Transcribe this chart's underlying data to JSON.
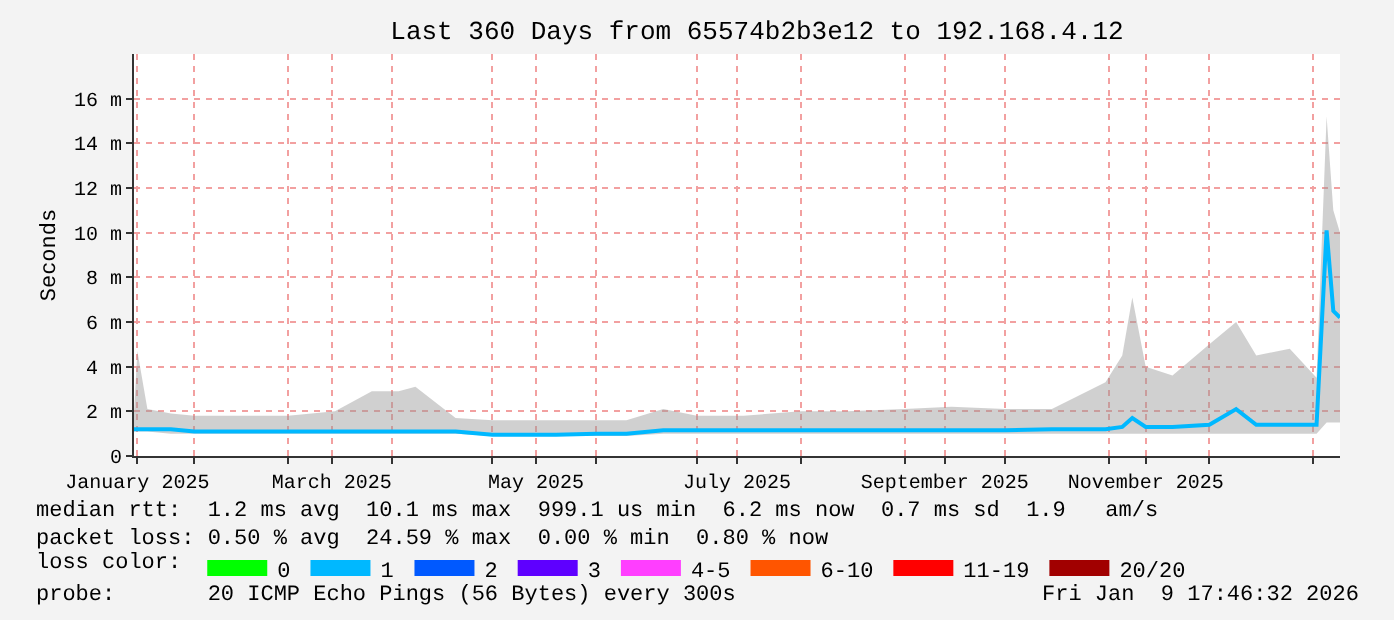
{
  "chart_data": {
    "type": "line",
    "title": "Last 360 Days from 65574b2b3e12 to 192.168.4.12",
    "ylabel": "Seconds",
    "x": [
      "2025-01-14",
      "2025-01-15",
      "2025-01-18",
      "2025-01-25",
      "2025-02-01",
      "2025-02-15",
      "2025-03-01",
      "2025-03-15",
      "2025-03-26",
      "2025-04-03",
      "2025-04-08",
      "2025-04-20",
      "2025-05-01",
      "2025-05-20",
      "2025-06-01",
      "2025-06-10",
      "2025-06-21",
      "2025-07-01",
      "2025-07-15",
      "2025-08-01",
      "2025-08-15",
      "2025-09-01",
      "2025-09-15",
      "2025-10-01",
      "2025-10-15",
      "2025-10-31",
      "2025-11-05",
      "2025-11-08",
      "2025-11-12",
      "2025-11-20",
      "2025-12-01",
      "2025-12-09",
      "2025-12-15",
      "2025-12-25",
      "2026-01-02",
      "2026-01-05",
      "2026-01-07",
      "2026-01-09"
    ],
    "series": [
      {
        "color": "#00b8ff",
        "values": [
          1.2,
          1.2,
          1.2,
          1.2,
          1.1,
          1.1,
          1.1,
          1.1,
          1.1,
          1.1,
          1.1,
          1.1,
          0.95,
          0.95,
          1.0,
          1.0,
          1.15,
          1.15,
          1.15,
          1.15,
          1.15,
          1.15,
          1.15,
          1.15,
          1.2,
          1.2,
          1.3,
          1.7,
          1.3,
          1.3,
          1.4,
          2.1,
          1.4,
          1.4,
          1.4,
          10.1,
          6.5,
          6.2
        ],
        "lower": [
          1.1,
          1.1,
          1.1,
          1.0,
          1.0,
          1.0,
          1.0,
          1.0,
          1.0,
          1.0,
          1.0,
          1.0,
          0.9,
          0.9,
          0.9,
          0.9,
          1.0,
          1.0,
          1.0,
          1.0,
          1.0,
          1.0,
          1.0,
          1.0,
          1.0,
          1.0,
          1.0,
          1.0,
          1.0,
          1.0,
          1.0,
          1.0,
          1.0,
          1.0,
          1.0,
          1.5,
          1.5,
          1.5
        ],
        "upper": [
          1.9,
          4.7,
          2.1,
          1.9,
          1.8,
          1.8,
          1.8,
          2.0,
          2.9,
          2.9,
          3.1,
          1.7,
          1.6,
          1.6,
          1.6,
          1.6,
          2.1,
          1.8,
          1.8,
          2.0,
          2.0,
          2.1,
          2.2,
          2.1,
          2.1,
          3.3,
          4.5,
          7.1,
          4.0,
          3.6,
          5.0,
          6.0,
          4.5,
          4.8,
          3.5,
          15.2,
          11,
          10
        ]
      },
      {
        "name": "0",
        "color": "#00ff00",
        "values": [
          null,
          null,
          null,
          null,
          null,
          null,
          null,
          null,
          null,
          null,
          null,
          null,
          null,
          null,
          null,
          null,
          null,
          null,
          null,
          null,
          null,
          null,
          null,
          null,
          null,
          null,
          null,
          null,
          null,
          null,
          null,
          null,
          null,
          null,
          null,
          null,
          null,
          null
        ]
      },
      {
        "name": "1",
        "color": "#00b8ff",
        "values": [
          null,
          null,
          null,
          null,
          null,
          null,
          null,
          null,
          null,
          null,
          null,
          null,
          null,
          null,
          null,
          null,
          null,
          null,
          null,
          null,
          null,
          null,
          null,
          null,
          null,
          null,
          null,
          null,
          null,
          null,
          null,
          null,
          null,
          null,
          null,
          null,
          null,
          null
        ]
      },
      {
        "name": "2",
        "color": "#0059ff",
        "values": [
          null,
          null,
          null,
          null,
          null,
          null,
          null,
          null,
          null,
          null,
          null,
          null,
          null,
          null,
          null,
          null,
          null,
          null,
          null,
          null,
          null,
          null,
          null,
          null,
          null,
          null,
          null,
          null,
          null,
          null,
          null,
          null,
          null,
          null,
          null,
          null,
          null,
          null
        ]
      },
      {
        "name": "3",
        "color": "#5e00ff",
        "values": [
          null,
          null,
          null,
          null,
          null,
          null,
          null,
          null,
          null,
          null,
          null,
          null,
          null,
          null,
          null,
          null,
          null,
          null,
          null,
          null,
          null,
          null,
          null,
          null,
          null,
          null,
          null,
          null,
          null,
          null,
          null,
          null,
          null,
          null,
          null,
          null,
          null,
          null
        ]
      },
      {
        "name": "4-5",
        "color": "#ff3eff",
        "values": [
          null,
          null,
          null,
          null,
          null,
          null,
          null,
          null,
          null,
          null,
          null,
          null,
          null,
          null,
          null,
          null,
          null,
          null,
          null,
          null,
          null,
          null,
          null,
          null,
          null,
          null,
          null,
          null,
          null,
          null,
          null,
          null,
          null,
          null,
          null,
          null,
          null,
          null
        ]
      },
      {
        "name": "6-10",
        "color": "#ff5500",
        "values": [
          null,
          null,
          null,
          null,
          null,
          null,
          null,
          null,
          null,
          null,
          null,
          null,
          null,
          null,
          null,
          null,
          null,
          null,
          null,
          null,
          null,
          null,
          null,
          null,
          null,
          null,
          null,
          null,
          null,
          null,
          null,
          null,
          null,
          null,
          null,
          null,
          null,
          null
        ]
      },
      {
        "name": "11-19",
        "color": "#ff0000",
        "values": [
          null,
          null,
          null,
          null,
          null,
          null,
          null,
          null,
          null,
          null,
          null,
          null,
          null,
          null,
          null,
          null,
          null,
          null,
          null,
          null,
          null,
          null,
          null,
          null,
          null,
          null,
          null,
          null,
          null,
          null,
          null,
          null,
          null,
          null,
          null,
          null,
          null,
          null
        ]
      },
      {
        "name": "20/20",
        "color": "#a10000",
        "values": [
          null,
          null,
          null,
          null,
          null,
          null,
          null,
          null,
          null,
          null,
          null,
          null,
          null,
          null,
          null,
          null,
          null,
          null,
          null,
          null,
          null,
          null,
          null,
          null,
          null,
          null,
          null,
          null,
          null,
          null,
          null,
          null,
          null,
          null,
          null,
          null,
          null,
          null
        ]
      }
    ],
    "legend": "bottom",
    "legend_title": "loss color:",
    "xlim": [
      "2025-01-14",
      "2026-01-09"
    ],
    "xticks": [
      {
        "value": "2025-01-15",
        "label": "January 2025"
      },
      {
        "value": "2025-03-14",
        "label": "March 2025"
      },
      {
        "value": "2025-05-14",
        "label": "May 2025"
      },
      {
        "value": "2025-07-13",
        "label": "July 2025"
      },
      {
        "value": "2025-09-13",
        "label": "September 2025"
      },
      {
        "value": "2025-11-12",
        "label": "November 2025"
      },
      {
        "value": "2025-02-01",
        "label": null
      },
      {
        "value": "2025-03-01",
        "label": null
      },
      {
        "value": "2025-04-01",
        "label": null
      },
      {
        "value": "2025-05-01",
        "label": null
      },
      {
        "value": "2025-06-01",
        "label": null
      },
      {
        "value": "2025-07-01",
        "label": null
      },
      {
        "value": "2025-08-01",
        "label": null
      },
      {
        "value": "2025-09-01",
        "label": null
      },
      {
        "value": "2025-10-01",
        "label": null
      },
      {
        "value": "2025-11-01",
        "label": null
      },
      {
        "value": "2025-12-01",
        "label": null
      },
      {
        "value": "2026-01-01",
        "label": null
      }
    ],
    "ylim": [
      0,
      18
    ],
    "yticks": [
      0,
      {
        "value": 2,
        "label": "2 m"
      },
      {
        "value": 4,
        "label": "4 m"
      },
      {
        "value": 6,
        "label": "6 m"
      },
      {
        "value": 8,
        "label": "8 m"
      },
      {
        "value": 10,
        "label": "10 m"
      },
      {
        "value": 12,
        "label": "12 m"
      },
      {
        "value": 14,
        "label": "14 m"
      },
      {
        "value": 16,
        "label": "16 m"
      }
    ],
    "grid": true,
    "annotations": [
      "median rtt:  1.2 ms avg  10.1 ms max  999.1 us min  6.2 ms now  0.7 ms sd  1.9   am/s",
      "packet loss: 0.50 % avg  24.59 % max  0.00 % min  0.80 % now",
      "probe:       20 ICMP Echo Pings (56 Bytes) every 300s",
      "Fri Jan  9 17:46:32 2026"
    ]
  }
}
